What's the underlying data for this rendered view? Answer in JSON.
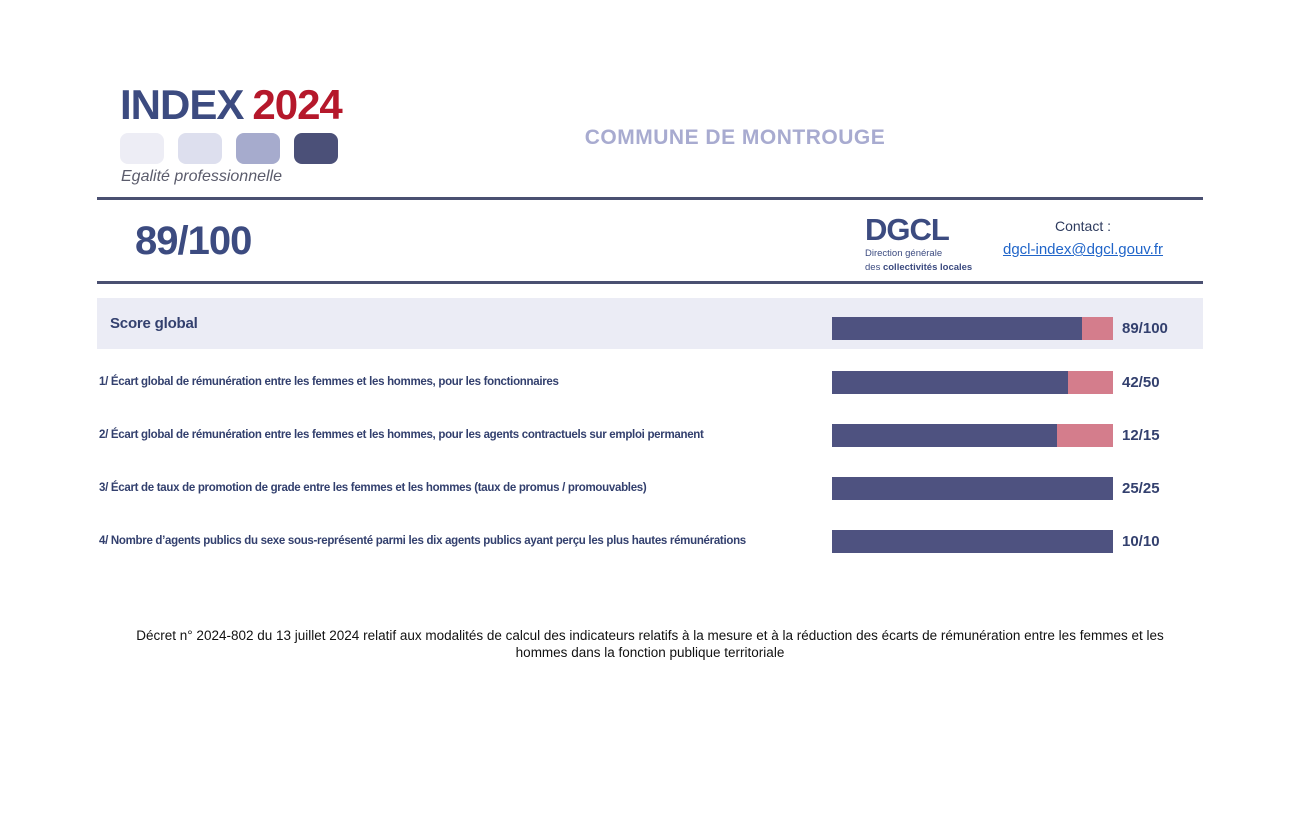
{
  "page": {
    "logo": {
      "title_main": "INDEX",
      "title_year": "2024",
      "subtitle": "Egalité professionnelle",
      "square_colors": [
        "#ededf5",
        "#dddfee",
        "#a6abcd",
        "#4b5078"
      ],
      "title_color": "#3c4b80",
      "year_color": "#b5182b"
    },
    "org_title": "COMMUNE DE MONTROUGE",
    "score_value": "89/100",
    "dgcl": {
      "acronym": "DGCL",
      "line1": "Direction générale",
      "line2_prefix": "des ",
      "line2_bold": "collectivités locales"
    },
    "contact": {
      "label": "Contact :",
      "email": "dgcl-index@dgcl.gouv.fr"
    },
    "rows": [
      {
        "label": "Score global",
        "score": "89/100",
        "value": 89,
        "max": 100
      },
      {
        "label": "1/ Écart global de rémunération entre les femmes et les hommes, pour les fonctionnaires",
        "score": "42/50",
        "value": 42,
        "max": 50
      },
      {
        "label": "2/ Écart global de rémunération entre les femmes et les hommes, pour les agents contractuels sur emploi permanent",
        "score": "12/15",
        "value": 12,
        "max": 15
      },
      {
        "label": "3/ Écart de taux de promotion de grade entre les femmes et les hommes (taux de promus / promouvables)",
        "score": "25/25",
        "value": 25,
        "max": 25
      },
      {
        "label": "4/ Nombre d’agents publics du sexe sous-représenté parmi les dix agents publics ayant perçu les plus hautes rémunérations",
        "score": "10/10",
        "value": 10,
        "max": 10
      }
    ],
    "footer_lines": [
      "Décret n° 2024-802 du 13 juillet 2024 relatif aux modalités de calcul des indicateurs relatifs à la mesure et à la réduction des écarts de rémunération entre les femmes et les",
      "hommes dans la fonction publique territoriale"
    ],
    "colors": {
      "bar_fill": "#4e5280",
      "bar_remainder": "#d47d8c",
      "highlight_row_bg": "#ebecf5",
      "rule": "#4a5071",
      "navy_text": "#33406e",
      "link_blue": "#2065c9"
    }
  },
  "chart_data": {
    "type": "bar",
    "categories": [
      "Score global",
      "1/ Écart global de rémunération entre les femmes et les hommes, pour les fonctionnaires",
      "2/ Écart global de rémunération entre les femmes et les hommes, pour les agents contractuels sur emploi permanent",
      "3/ Écart de taux de promotion de grade entre les femmes et les hommes (taux de promus / promouvables)",
      "4/ Nombre d’agents publics du sexe sous-représenté parmi les dix agents publics ayant perçu les plus hautes rémunérations"
    ],
    "values": [
      89,
      42,
      12,
      25,
      10
    ],
    "maxima": [
      100,
      50,
      15,
      25,
      10
    ],
    "data_labels": [
      "89/100",
      "42/50",
      "12/15",
      "25/25",
      "10/10"
    ],
    "title": "INDEX 2024 Egalité professionnelle — COMMUNE DE MONTROUGE",
    "xlabel": "",
    "ylabel": "",
    "legend": false,
    "grid": false,
    "bar_orientation": "horizontal",
    "fill_color": "#4e5280",
    "remainder_color": "#d47d8c"
  }
}
